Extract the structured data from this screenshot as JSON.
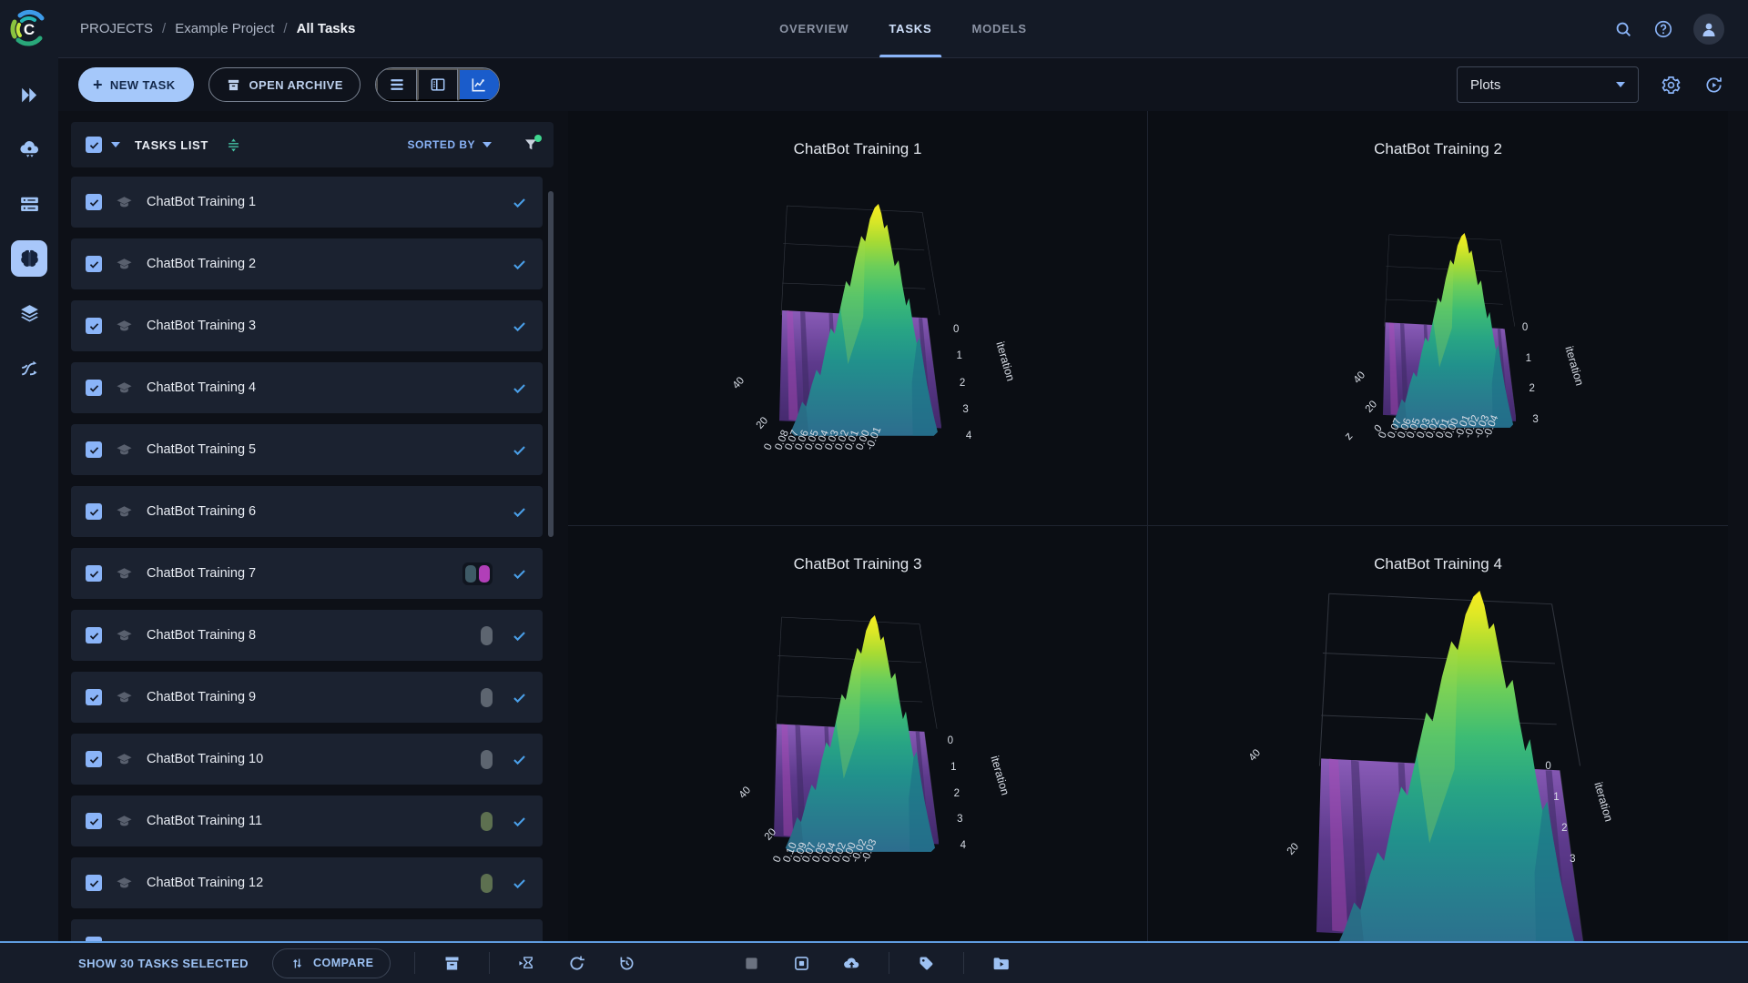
{
  "app": {
    "logo_text": "C"
  },
  "sidebar": {
    "items": [
      {
        "icon": "projects-icon",
        "active": false
      },
      {
        "icon": "cloud-services-icon",
        "active": false
      },
      {
        "icon": "workers-queues-icon",
        "active": false
      },
      {
        "icon": "experiments-icon",
        "active": true
      },
      {
        "icon": "datasets-icon",
        "active": false
      },
      {
        "icon": "pipelines-icon",
        "active": false
      }
    ]
  },
  "header": {
    "breadcrumb": [
      "PROJECTS",
      "Example Project",
      "All Tasks"
    ],
    "separator": "/",
    "tabs": [
      {
        "label": "OVERVIEW",
        "active": false
      },
      {
        "label": "TASKS",
        "active": true
      },
      {
        "label": "MODELS",
        "active": false
      }
    ],
    "right_icons": [
      "search-icon",
      "help-icon",
      "avatar-icon"
    ]
  },
  "toolbar": {
    "new_task": "NEW TASK",
    "open_archive": "OPEN ARCHIVE",
    "view_toggle": [
      {
        "icon": "table-view-icon",
        "active": false
      },
      {
        "icon": "split-view-icon",
        "active": false
      },
      {
        "icon": "plots-view-icon",
        "active": true
      }
    ],
    "plots_dropdown": "Plots",
    "right_icons": [
      "settings-gear-icon",
      "auto-refresh-icon"
    ]
  },
  "tasks_panel": {
    "title": "TASKS LIST",
    "sorted_by": "SORTED BY",
    "filter_active": true,
    "rows": [
      {
        "name": "ChatBot Training 1",
        "checked": true,
        "shown": true,
        "tags": []
      },
      {
        "name": "ChatBot Training 2",
        "checked": true,
        "shown": true,
        "tags": []
      },
      {
        "name": "ChatBot Training 3",
        "checked": true,
        "shown": true,
        "tags": []
      },
      {
        "name": "ChatBot Training 4",
        "checked": true,
        "shown": true,
        "tags": []
      },
      {
        "name": "ChatBot Training 5",
        "checked": true,
        "shown": true,
        "tags": []
      },
      {
        "name": "ChatBot Training 6",
        "checked": true,
        "shown": true,
        "tags": []
      },
      {
        "name": "ChatBot Training 7",
        "checked": true,
        "shown": true,
        "tags": [
          "#3e5a66",
          "#b13fb8"
        ]
      },
      {
        "name": "ChatBot Training 8",
        "checked": true,
        "shown": true,
        "tags": [
          "#5d6570"
        ]
      },
      {
        "name": "ChatBot Training 9",
        "checked": true,
        "shown": true,
        "tags": [
          "#5d6570"
        ]
      },
      {
        "name": "ChatBot Training 10",
        "checked": true,
        "shown": true,
        "tags": [
          "#5d6570"
        ]
      },
      {
        "name": "ChatBot Training 11",
        "checked": true,
        "shown": true,
        "tags": [
          "#5d7050"
        ]
      },
      {
        "name": "ChatBot Training 12",
        "checked": true,
        "shown": true,
        "tags": [
          "#5d7050"
        ]
      },
      {
        "partial": true,
        "checked": true,
        "tags": []
      }
    ]
  },
  "footer": {
    "selected_label": "SHOW 30 TASKS SELECTED",
    "compare_label": "COMPARE",
    "compare_icon": "compare-icon",
    "actions": [
      {
        "icon": "archive-icon",
        "divider_before": true
      },
      {
        "icon": "enqueue-icon",
        "divider_before": true
      },
      {
        "icon": "reset-icon"
      },
      {
        "icon": "retry-icon"
      },
      {
        "icon": "abort-icon",
        "disabled": true,
        "spacer_before": true
      },
      {
        "icon": "abort-all-children-icon"
      },
      {
        "icon": "publish-icon"
      },
      {
        "icon": "add-tag-icon",
        "divider_before": true
      },
      {
        "icon": "move-to-project-icon",
        "divider_before": true
      }
    ]
  },
  "chart_data": [
    {
      "type": "surface",
      "title": "ChatBot Training 1",
      "ylabel": "iteration",
      "y_ticks": [
        "0",
        "1",
        "2",
        "3",
        "4"
      ],
      "z_ticks": [
        "40",
        "20"
      ],
      "xlabel": "",
      "x_ticks": [
        "0",
        "0.08",
        "0.07",
        "0.06",
        "0.05",
        "0.04",
        "0.03",
        "0.02",
        "0.01",
        "0.00",
        "-0.01"
      ],
      "colormap": "viridis",
      "z_range_estimate": [
        0,
        45
      ],
      "shape": "purple histogram ridge with tall yellow-green central peak"
    },
    {
      "type": "surface",
      "title": "ChatBot Training 2",
      "ylabel": "iteration",
      "y_ticks": [
        "0",
        "1",
        "2",
        "3"
      ],
      "z_ticks": [
        "40",
        "20",
        "0"
      ],
      "xlabel": "z",
      "x_ticks": [
        "0",
        "0.07",
        "0.06",
        "0.05",
        "0.03",
        "0.02",
        "0.01",
        "0.00",
        "-0.01",
        "-0.02",
        "-0.03",
        "-0.04"
      ],
      "colormap": "viridis",
      "z_range_estimate": [
        0,
        45
      ],
      "shape": "purple histogram ridge with green central peak"
    },
    {
      "type": "surface",
      "title": "ChatBot Training 3",
      "ylabel": "iteration",
      "y_ticks": [
        "0",
        "1",
        "2",
        "3",
        "4"
      ],
      "z_ticks": [
        "40",
        "20"
      ],
      "xlabel": "",
      "x_ticks": [
        "0",
        "0.10",
        "0.09",
        "0.07",
        "0.05",
        "0.04",
        "0.02",
        "0.00",
        "-0.02",
        "-0.03"
      ],
      "colormap": "viridis",
      "z_range_estimate": [
        0,
        45
      ],
      "shape": "purple histogram ridge with tall green central peak"
    },
    {
      "type": "surface",
      "title": "ChatBot Training 4",
      "ylabel": "iteration",
      "y_ticks": [
        "0",
        "1",
        "2",
        "3"
      ],
      "z_ticks": [
        "40",
        "20"
      ],
      "xlabel": "",
      "x_ticks": [],
      "colormap": "viridis",
      "z_range_estimate": [
        0,
        45
      ],
      "shape": "large purple ridge with green peak shifted right, clipped at panel bottom"
    }
  ]
}
